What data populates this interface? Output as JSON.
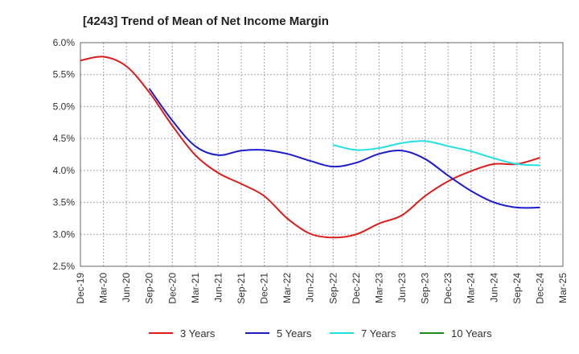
{
  "chart_data": {
    "type": "line",
    "title": "[4243]  Trend of Mean of Net Income Margin",
    "xlabel": "",
    "ylabel": "",
    "x": [
      "Dec-19",
      "Mar-20",
      "Jun-20",
      "Sep-20",
      "Dec-20",
      "Mar-21",
      "Jun-21",
      "Sep-21",
      "Dec-21",
      "Mar-22",
      "Jun-22",
      "Sep-22",
      "Dec-22",
      "Mar-23",
      "Jun-23",
      "Sep-23",
      "Dec-23",
      "Mar-24",
      "Jun-24",
      "Sep-24",
      "Dec-24",
      "Mar-25"
    ],
    "ylim": [
      2.5,
      6.0
    ],
    "yticks": [
      "2.5%",
      "3.0%",
      "3.5%",
      "4.0%",
      "4.5%",
      "5.0%",
      "5.5%",
      "6.0%"
    ],
    "grid": true,
    "legend_position": "bottom",
    "series": [
      {
        "name": "3 Years",
        "color": "#dd1c1c",
        "values": [
          5.72,
          5.78,
          5.63,
          5.22,
          4.7,
          4.24,
          3.96,
          3.79,
          3.6,
          3.25,
          3.01,
          2.95,
          3.0,
          3.17,
          3.3,
          3.6,
          3.83,
          3.99,
          4.1,
          4.1,
          4.2,
          null
        ]
      },
      {
        "name": "5 Years",
        "color": "#1c1ccc",
        "values": [
          null,
          null,
          null,
          5.28,
          4.78,
          4.38,
          4.24,
          4.31,
          4.32,
          4.26,
          4.15,
          4.06,
          4.12,
          4.26,
          4.31,
          4.18,
          3.92,
          3.68,
          3.5,
          3.42,
          3.42,
          null
        ]
      },
      {
        "name": "7 Years",
        "color": "#22e0e0",
        "values": [
          null,
          null,
          null,
          null,
          null,
          null,
          null,
          null,
          null,
          null,
          null,
          4.4,
          4.32,
          4.35,
          4.43,
          4.46,
          4.38,
          4.3,
          4.19,
          4.1,
          4.08,
          null
        ]
      },
      {
        "name": "10 Years",
        "color": "#1c8c1c",
        "values": [
          null,
          null,
          null,
          null,
          null,
          null,
          null,
          null,
          null,
          null,
          null,
          null,
          null,
          null,
          null,
          null,
          null,
          null,
          null,
          null,
          null,
          null
        ]
      }
    ]
  }
}
